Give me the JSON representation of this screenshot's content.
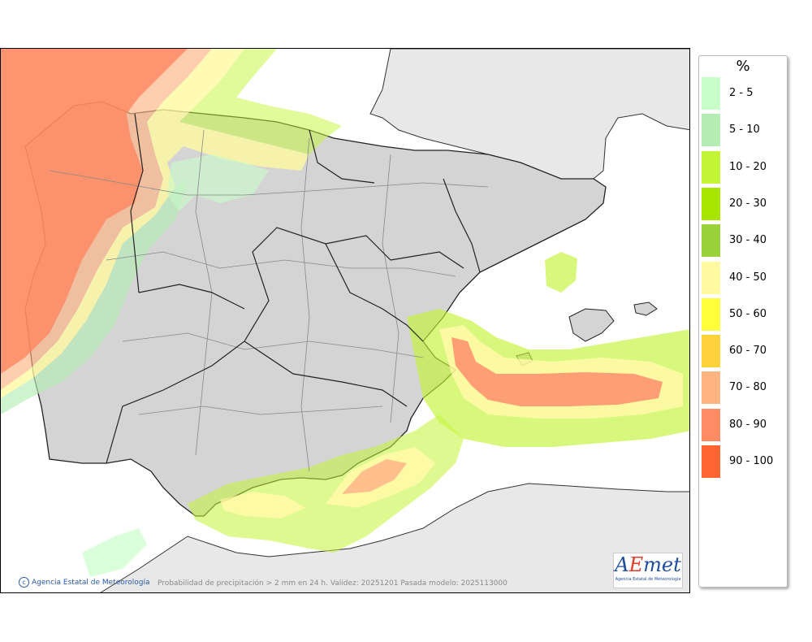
{
  "legend": {
    "title": "%",
    "items": [
      {
        "label": "2 - 5",
        "color": "#c8ffc8"
      },
      {
        "label": "5 - 10",
        "color": "#b4ecb4"
      },
      {
        "label": "10 - 20",
        "color": "#c3f536"
      },
      {
        "label": "20 - 30",
        "color": "#a8e600"
      },
      {
        "label": "30 - 40",
        "color": "#9ad13a"
      },
      {
        "label": "40 - 50",
        "color": "#fffaa0"
      },
      {
        "label": "50 - 60",
        "color": "#ffff3c"
      },
      {
        "label": "60 - 70",
        "color": "#ffd23c"
      },
      {
        "label": "70 - 80",
        "color": "#ffb482"
      },
      {
        "label": "80 - 90",
        "color": "#ff8c64"
      },
      {
        "label": "90 - 100",
        "color": "#ff6432"
      }
    ]
  },
  "footer": {
    "credit": "Agencia Estatal de Meteorología",
    "caption": "Probabilidad de precipitación > 2 mm en 24 h. Validez: 20251201 Pasada modelo: 2025113000"
  },
  "logo": {
    "text_a": "A",
    "text_e": "E",
    "text_met": "met",
    "subtitle": "Agencia Estatal de Meteorología"
  },
  "colors": {
    "land": "#d4d4d4",
    "other_land": "#e8e8e8",
    "sea": "#ffffff",
    "border": "#222222",
    "province_border": "#888888"
  }
}
